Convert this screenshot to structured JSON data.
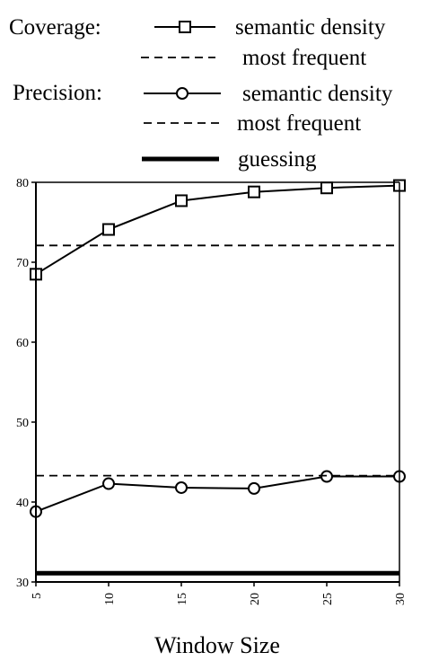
{
  "chart_data": {
    "type": "line",
    "xlabel": "Window Size",
    "ylabel": "",
    "xlim": [
      5,
      30
    ],
    "ylim": [
      30,
      80
    ],
    "x_ticks": [
      5,
      10,
      15,
      20,
      25,
      30
    ],
    "y_ticks": [
      30,
      40,
      50,
      60,
      70,
      80
    ],
    "legend": {
      "coverage_label": "Coverage:",
      "precision_label": "Precision:",
      "entries": [
        {
          "group": "coverage",
          "name": "semantic density",
          "style": "solid-square"
        },
        {
          "group": "coverage",
          "name": "most frequent",
          "style": "dashed"
        },
        {
          "group": "precision",
          "name": "semantic density",
          "style": "solid-circle"
        },
        {
          "group": "precision",
          "name": "most frequent",
          "style": "dashed"
        },
        {
          "group": "precision",
          "name": "guessing",
          "style": "thick"
        }
      ]
    },
    "series": [
      {
        "id": "coverage-semantic-density",
        "style": "solid-square",
        "x": [
          5,
          10,
          15,
          20,
          25,
          30
        ],
        "y": [
          68.5,
          74.1,
          77.7,
          78.8,
          79.3,
          79.6
        ]
      },
      {
        "id": "coverage-most-frequent",
        "style": "dashed",
        "x": [
          5,
          30
        ],
        "y": [
          72.1,
          72.1
        ]
      },
      {
        "id": "precision-semantic-density",
        "style": "solid-circle",
        "x": [
          5,
          10,
          15,
          20,
          25,
          30
        ],
        "y": [
          38.8,
          42.3,
          41.8,
          41.7,
          43.2,
          43.2
        ]
      },
      {
        "id": "precision-most-frequent",
        "style": "dashed",
        "x": [
          5,
          30
        ],
        "y": [
          43.3,
          43.3
        ]
      },
      {
        "id": "guessing",
        "style": "thick",
        "x": [
          5,
          30
        ],
        "y": [
          31.1,
          31.1
        ]
      }
    ]
  }
}
